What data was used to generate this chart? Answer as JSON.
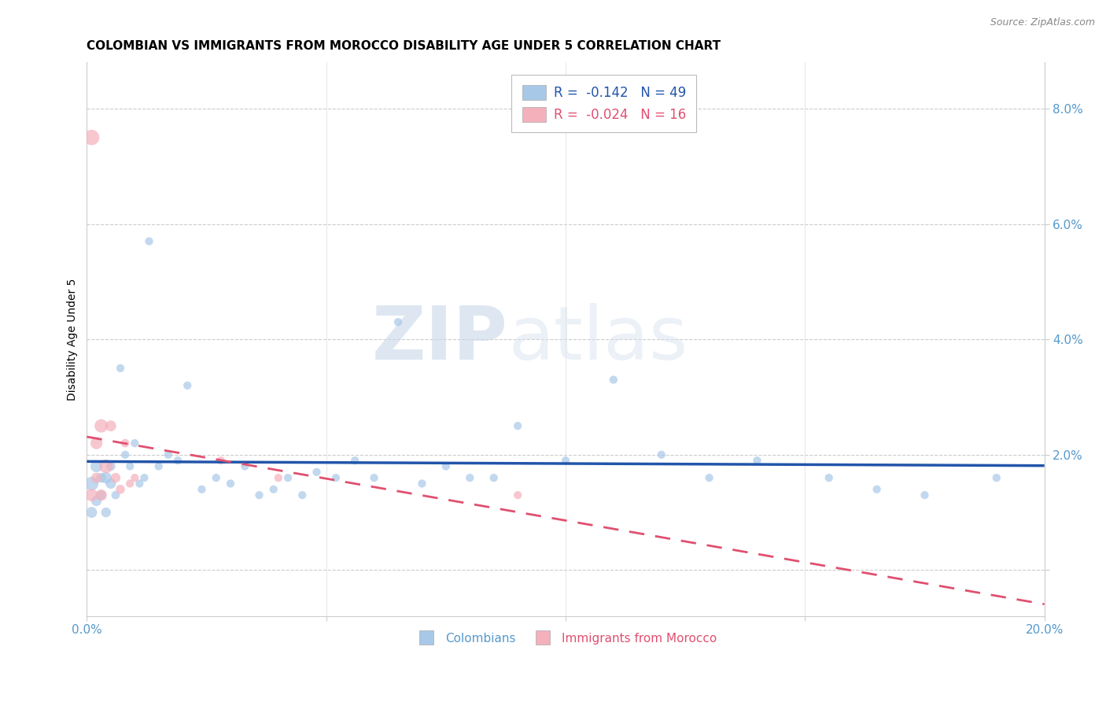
{
  "title": "COLOMBIAN VS IMMIGRANTS FROM MOROCCO DISABILITY AGE UNDER 5 CORRELATION CHART",
  "source": "Source: ZipAtlas.com",
  "ylabel": "Disability Age Under 5",
  "xlim": [
    0.0,
    0.2
  ],
  "ylim": [
    -0.008,
    0.088
  ],
  "yticks": [
    0.0,
    0.02,
    0.04,
    0.06,
    0.08
  ],
  "ytick_labels": [
    "",
    "2.0%",
    "4.0%",
    "6.0%",
    "8.0%"
  ],
  "xticks": [
    0.0,
    0.05,
    0.1,
    0.15,
    0.2
  ],
  "xtick_labels": [
    "0.0%",
    "",
    "",
    "",
    "20.0%"
  ],
  "colombians_x": [
    0.001,
    0.001,
    0.002,
    0.002,
    0.003,
    0.003,
    0.004,
    0.004,
    0.005,
    0.005,
    0.006,
    0.007,
    0.008,
    0.009,
    0.01,
    0.011,
    0.012,
    0.013,
    0.015,
    0.017,
    0.019,
    0.021,
    0.024,
    0.027,
    0.03,
    0.033,
    0.036,
    0.039,
    0.042,
    0.045,
    0.048,
    0.052,
    0.056,
    0.06,
    0.065,
    0.07,
    0.075,
    0.08,
    0.085,
    0.09,
    0.1,
    0.11,
    0.12,
    0.13,
    0.14,
    0.155,
    0.165,
    0.175,
    0.19
  ],
  "colombians_y": [
    0.015,
    0.01,
    0.018,
    0.012,
    0.016,
    0.013,
    0.016,
    0.01,
    0.015,
    0.018,
    0.013,
    0.035,
    0.02,
    0.018,
    0.022,
    0.015,
    0.016,
    0.057,
    0.018,
    0.02,
    0.019,
    0.032,
    0.014,
    0.016,
    0.015,
    0.018,
    0.013,
    0.014,
    0.016,
    0.013,
    0.017,
    0.016,
    0.019,
    0.016,
    0.043,
    0.015,
    0.018,
    0.016,
    0.016,
    0.025,
    0.019,
    0.033,
    0.02,
    0.016,
    0.019,
    0.016,
    0.014,
    0.013,
    0.016
  ],
  "colombians_size": [
    160,
    100,
    120,
    90,
    80,
    70,
    110,
    80,
    90,
    70,
    60,
    55,
    55,
    55,
    55,
    55,
    55,
    55,
    55,
    55,
    55,
    55,
    55,
    55,
    55,
    55,
    55,
    55,
    55,
    55,
    55,
    55,
    55,
    55,
    55,
    55,
    55,
    55,
    55,
    55,
    55,
    55,
    55,
    55,
    55,
    55,
    55,
    55,
    55
  ],
  "morocco_x": [
    0.001,
    0.001,
    0.002,
    0.002,
    0.003,
    0.003,
    0.004,
    0.005,
    0.006,
    0.007,
    0.008,
    0.009,
    0.01,
    0.028,
    0.04,
    0.09
  ],
  "morocco_y": [
    0.075,
    0.013,
    0.022,
    0.016,
    0.025,
    0.013,
    0.018,
    0.025,
    0.016,
    0.014,
    0.022,
    0.015,
    0.016,
    0.019,
    0.016,
    0.013
  ],
  "morocco_size": [
    200,
    130,
    120,
    90,
    150,
    110,
    160,
    100,
    80,
    70,
    60,
    55,
    55,
    55,
    55,
    55
  ],
  "col_color": "#a8c8e8",
  "mor_color": "#f4b0bb",
  "col_line_color": "#2255aa",
  "mor_line_color": "#e05070",
  "R_col": "-0.142",
  "N_col": "49",
  "R_mor": "-0.024",
  "N_mor": "16",
  "watermark_zip": "ZIP",
  "watermark_atlas": "atlas",
  "grid_color": "#cccccc",
  "title_fontsize": 11,
  "axis_label_fontsize": 10,
  "tick_fontsize": 11,
  "legend_fontsize": 12
}
